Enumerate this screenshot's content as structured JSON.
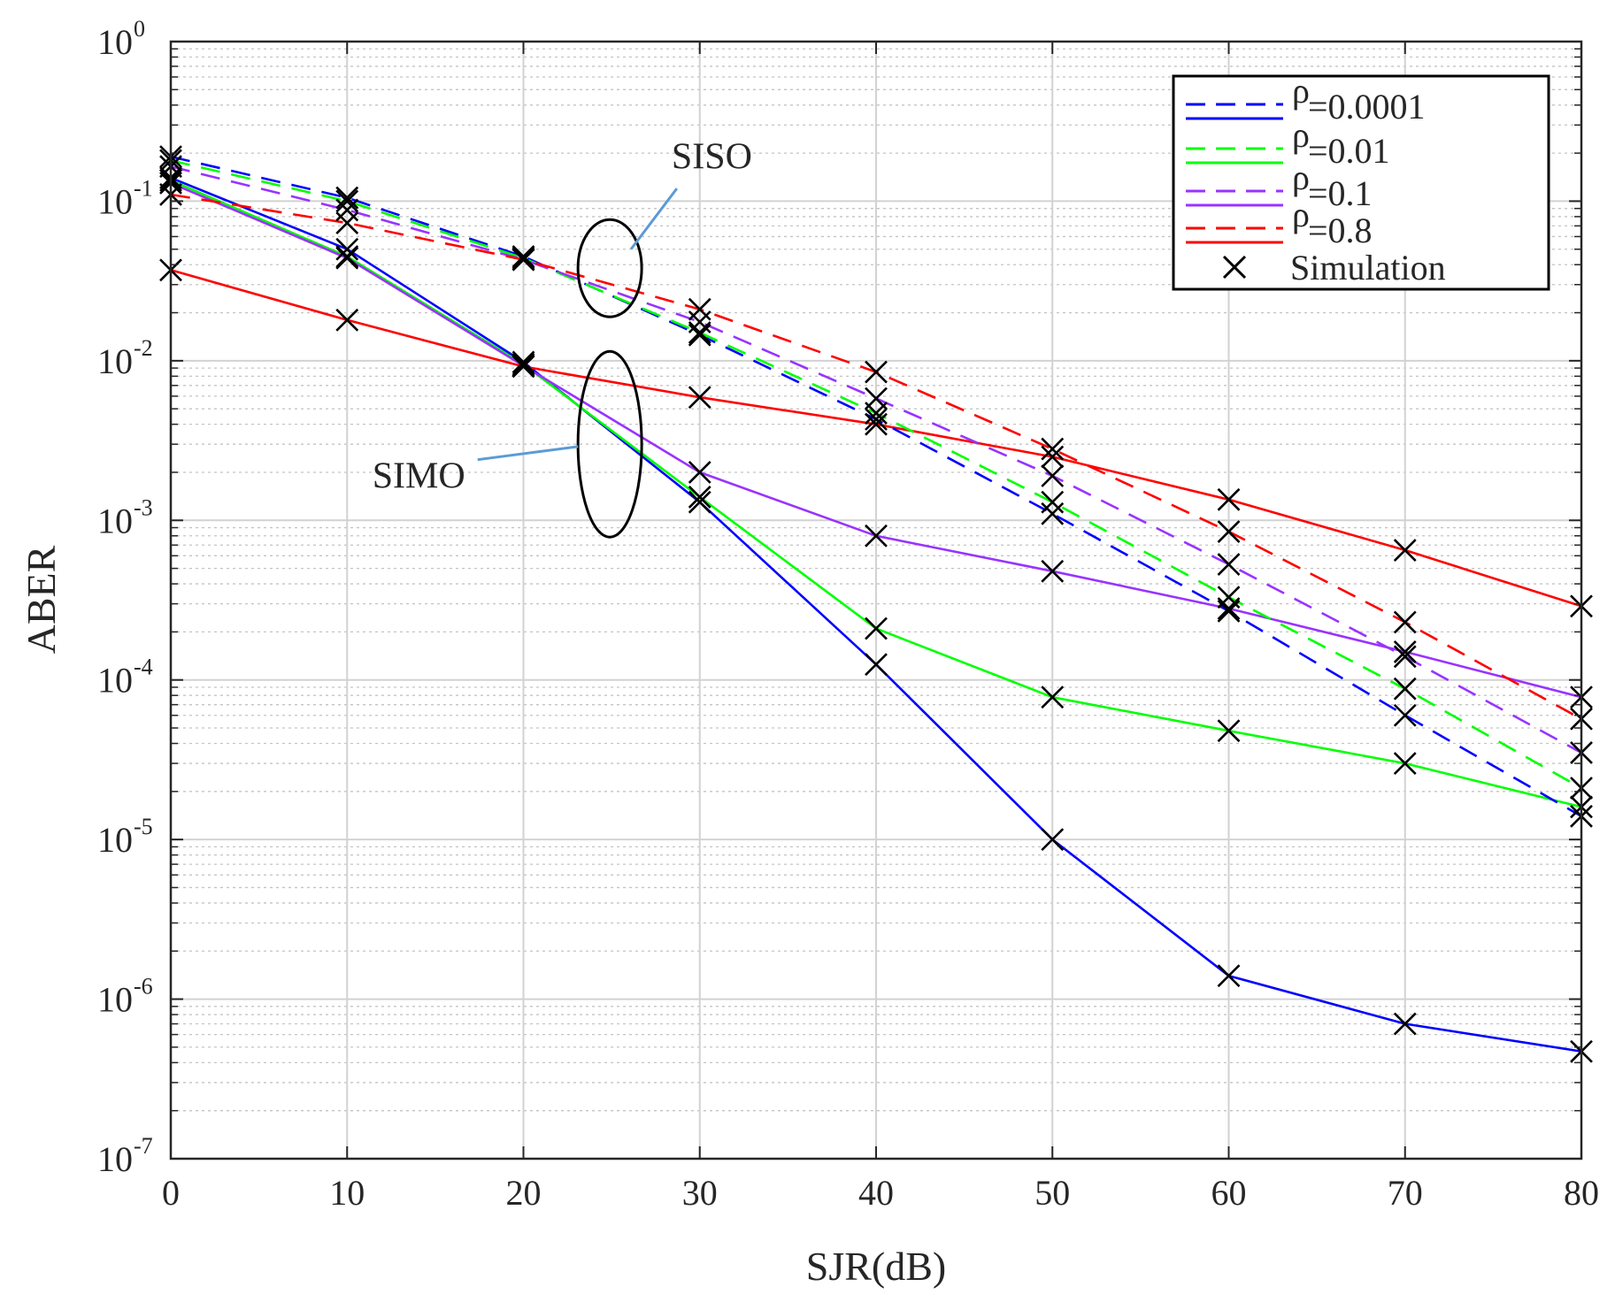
{
  "chart_data": {
    "type": "line",
    "title": "",
    "xlabel": "SJR(dB)",
    "ylabel": "ABER",
    "xscale": "linear",
    "yscale": "log",
    "xlim": [
      0,
      80
    ],
    "ylim": [
      1e-07,
      1
    ],
    "grid": true,
    "minor_grid": true,
    "legend_position": "top-right",
    "x_ticks": [
      0,
      10,
      20,
      30,
      40,
      50,
      60,
      70,
      80
    ],
    "y_ticks": [
      {
        "base": "10",
        "exp": "0",
        "value": 1
      },
      {
        "base": "10",
        "exp": "-1",
        "value": 0.1
      },
      {
        "base": "10",
        "exp": "-2",
        "value": 0.01
      },
      {
        "base": "10",
        "exp": "-3",
        "value": 0.001
      },
      {
        "base": "10",
        "exp": "-4",
        "value": 0.0001
      },
      {
        "base": "10",
        "exp": "-5",
        "value": 1e-05
      },
      {
        "base": "10",
        "exp": "-6",
        "value": 1e-06
      },
      {
        "base": "10",
        "exp": "-7",
        "value": 1e-07
      }
    ],
    "x": [
      0,
      10,
      20,
      30,
      40,
      50,
      60,
      70,
      80
    ],
    "legend": [
      {
        "symbol": "ρ",
        "label": "=0.0001",
        "color": "#0000ff",
        "kind": "pair"
      },
      {
        "symbol": "ρ",
        "label": "=0.01",
        "color": "#00ff00",
        "kind": "pair"
      },
      {
        "symbol": "ρ",
        "label": "=0.1",
        "color": "#9933ff",
        "kind": "pair"
      },
      {
        "symbol": "ρ",
        "label": "=0.8",
        "color": "#ff0000",
        "kind": "pair"
      },
      {
        "symbol": "",
        "label": "Simulation",
        "color": "#000000",
        "kind": "marker"
      }
    ],
    "series": [
      {
        "name": "SIMO ρ=0.0001",
        "group": "SIMO",
        "rho": "0.0001",
        "color": "#0000ff",
        "dash": false,
        "values": [
          0.14,
          0.05,
          0.0098,
          0.0013,
          0.000125,
          1e-05,
          1.4e-06,
          7e-07,
          4.7e-07
        ]
      },
      {
        "name": "SIMO ρ=0.01",
        "group": "SIMO",
        "rho": "0.01",
        "color": "#00ff00",
        "dash": false,
        "values": [
          0.135,
          0.045,
          0.0095,
          0.0014,
          0.00021,
          7.8e-05,
          4.8e-05,
          3e-05,
          1.6e-05
        ]
      },
      {
        "name": "SIMO ρ=0.1",
        "group": "SIMO",
        "rho": "0.1",
        "color": "#9933ff",
        "dash": false,
        "values": [
          0.13,
          0.044,
          0.0093,
          0.002,
          0.0008,
          0.00048,
          0.00028,
          0.00015,
          7.8e-05
        ]
      },
      {
        "name": "SIMO ρ=0.8",
        "group": "SIMO",
        "rho": "0.8",
        "color": "#ff0000",
        "dash": false,
        "values": [
          0.037,
          0.018,
          0.0092,
          0.0059,
          0.004,
          0.0025,
          0.00135,
          0.00065,
          0.00029
        ]
      },
      {
        "name": "SISO ρ=0.0001",
        "group": "SISO",
        "rho": "0.0001",
        "color": "#0000ff",
        "dash": true,
        "values": [
          0.19,
          0.105,
          0.045,
          0.0145,
          0.0043,
          0.0011,
          0.00027,
          6e-05,
          1.4e-05
        ]
      },
      {
        "name": "SISO ρ=0.01",
        "group": "SISO",
        "rho": "0.01",
        "color": "#00ff00",
        "dash": true,
        "values": [
          0.18,
          0.1,
          0.044,
          0.015,
          0.0047,
          0.0013,
          0.00033,
          8.8e-05,
          2.1e-05
        ]
      },
      {
        "name": "SISO ρ=0.1",
        "group": "SISO",
        "rho": "0.1",
        "color": "#9933ff",
        "dash": true,
        "values": [
          0.165,
          0.088,
          0.043,
          0.0175,
          0.0058,
          0.0019,
          0.00053,
          0.00014,
          3.5e-05
        ]
      },
      {
        "name": "SISO ρ=0.8",
        "group": "SISO",
        "rho": "0.8",
        "color": "#ff0000",
        "dash": true,
        "values": [
          0.11,
          0.073,
          0.043,
          0.021,
          0.0085,
          0.0028,
          0.00085,
          0.00023,
          5.7e-05
        ]
      }
    ],
    "annotations": [
      {
        "text": "SISO",
        "target": "SISO"
      },
      {
        "text": "SIMO",
        "target": "SIMO"
      }
    ]
  }
}
